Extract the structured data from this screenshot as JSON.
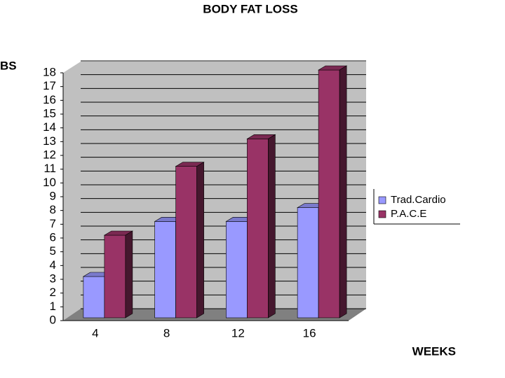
{
  "chart_data": {
    "type": "bar3d",
    "title": "BODY FAT LOSS",
    "y_label": "BS",
    "x_label": "WEEKS",
    "categories": [
      "4",
      "8",
      "12",
      "16"
    ],
    "series": [
      {
        "name": "Trad.Cardio",
        "color": "#9999ff",
        "values": [
          3,
          7,
          7,
          8
        ]
      },
      {
        "name": "P.A.C.E",
        "color": "#993366",
        "values": [
          6,
          11,
          13,
          18
        ]
      }
    ],
    "ylim": [
      0,
      18
    ],
    "yticks": [
      0,
      1,
      2,
      3,
      4,
      5,
      6,
      7,
      8,
      9,
      10,
      11,
      12,
      13,
      14,
      15,
      16,
      17,
      18
    ],
    "grid": true,
    "legend": "right"
  }
}
